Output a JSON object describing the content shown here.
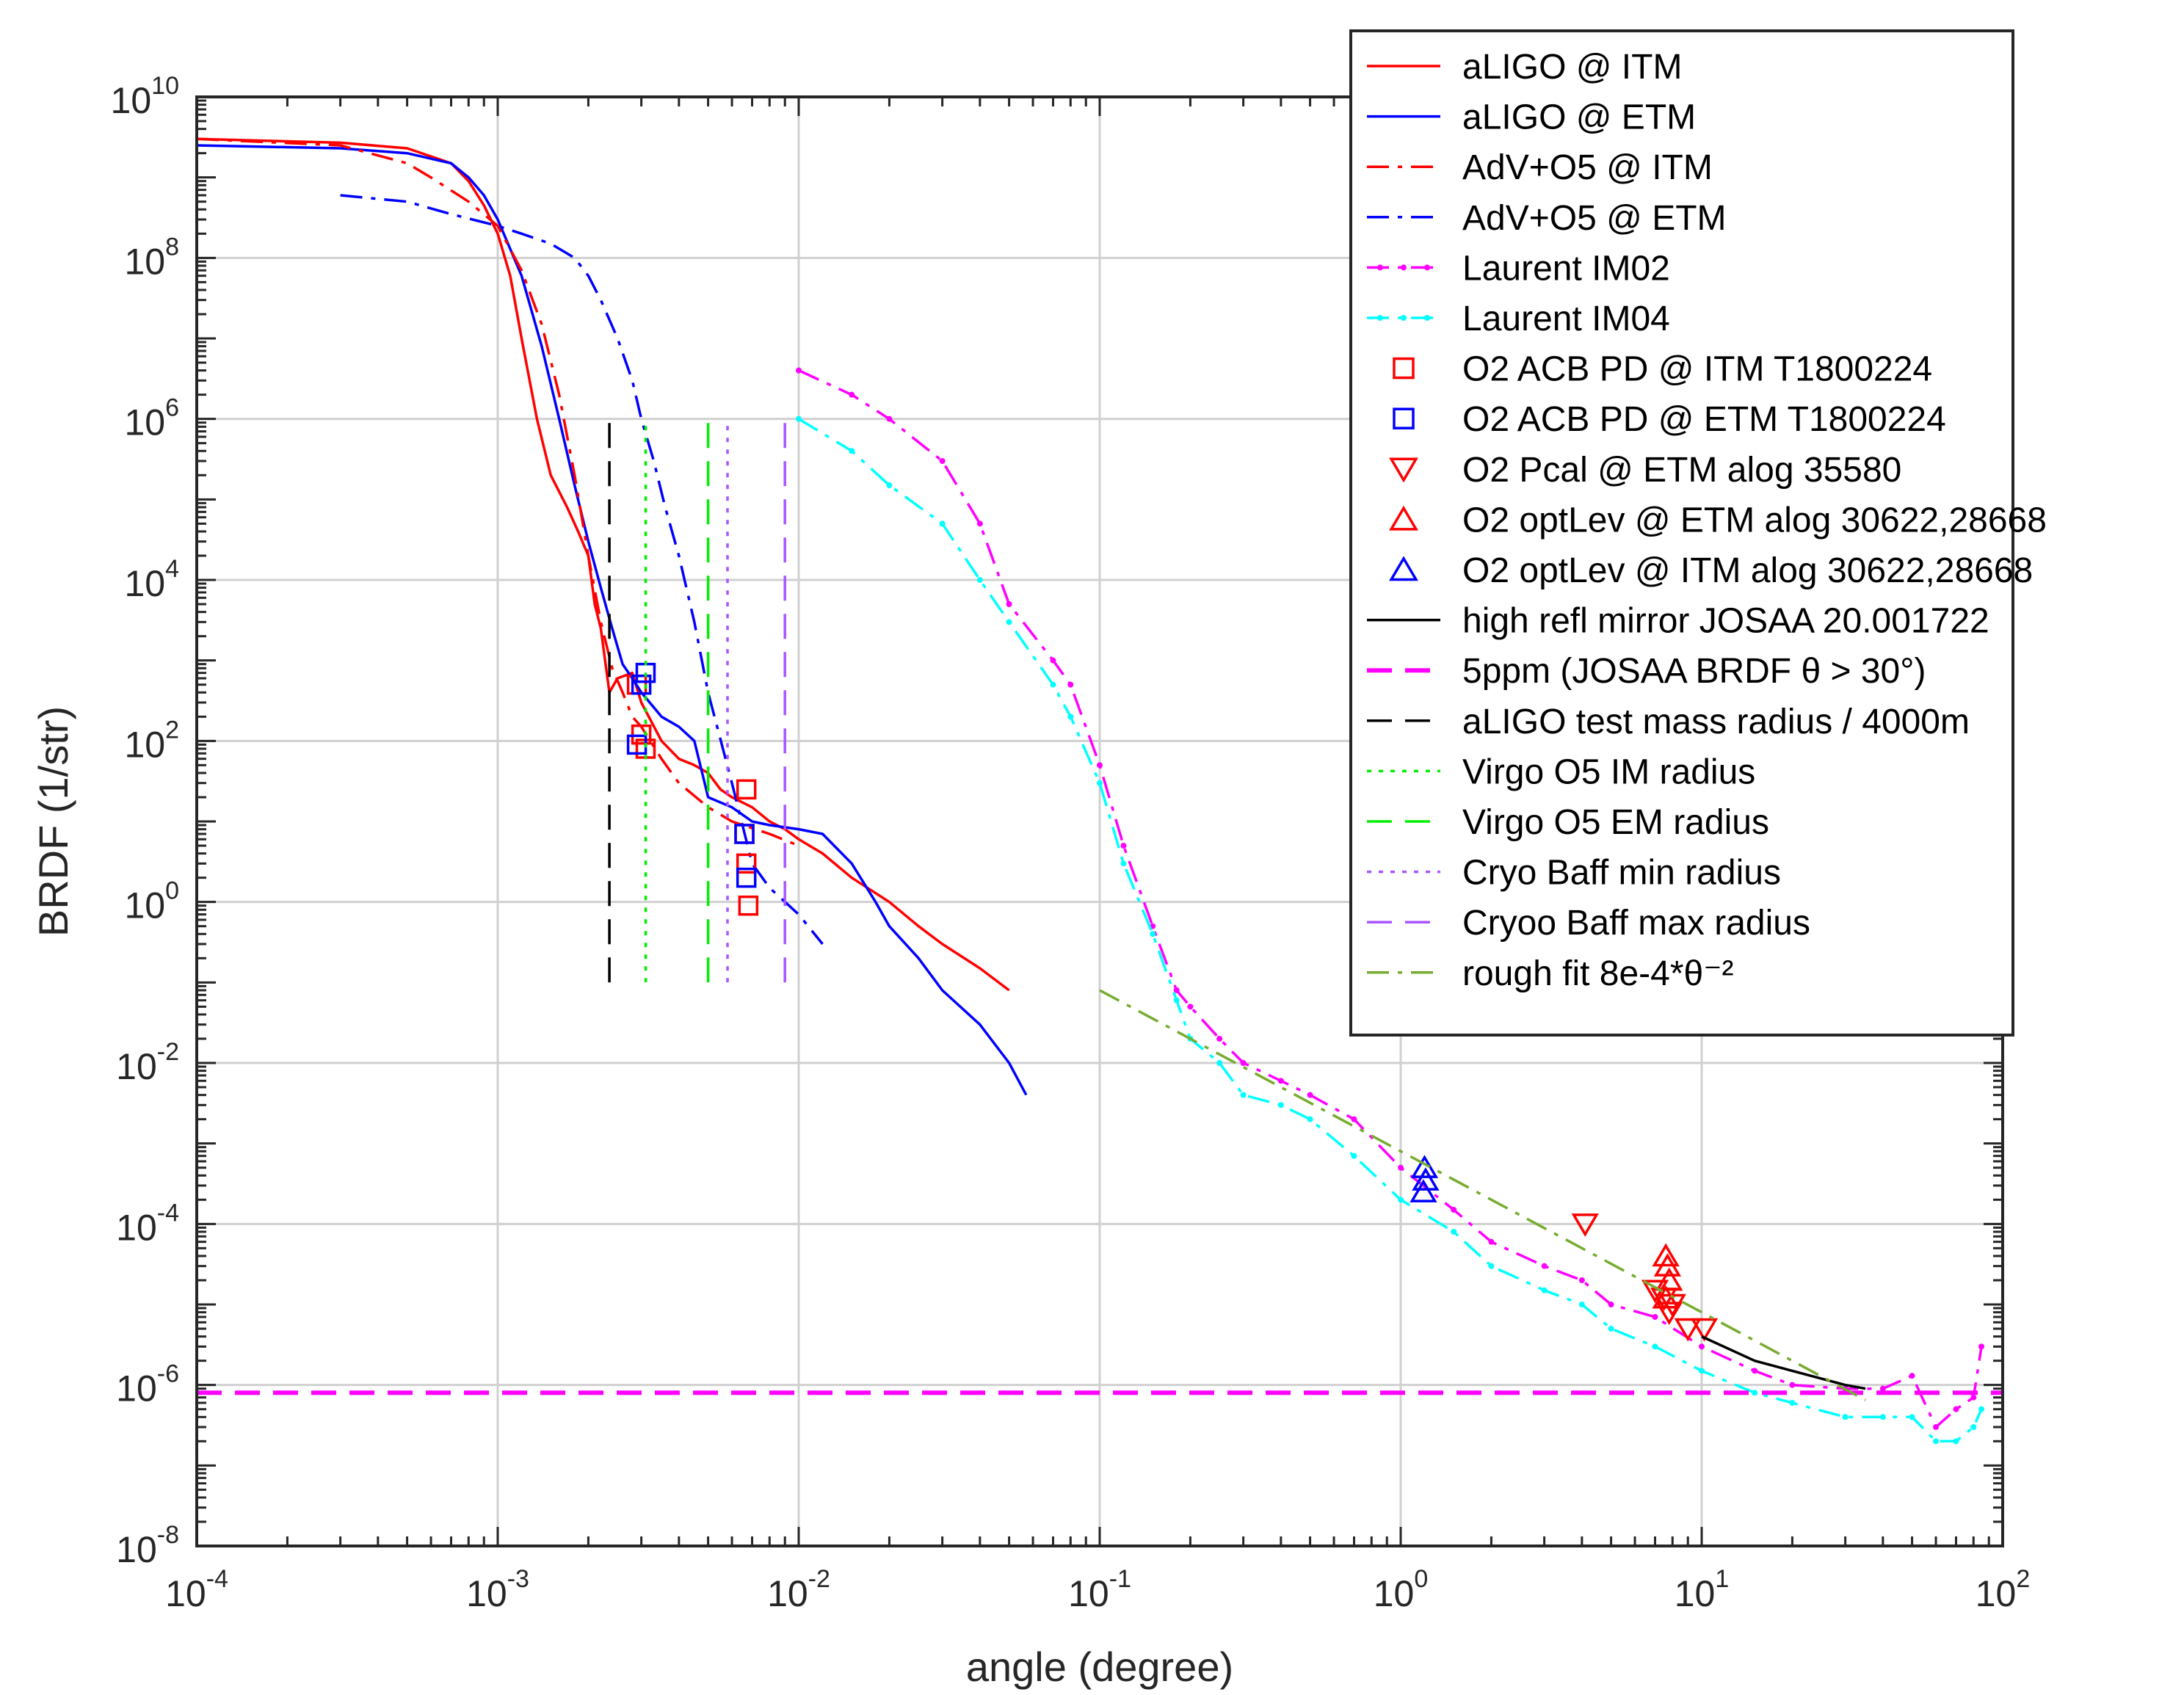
{
  "chart_data": {
    "type": "line",
    "title": "",
    "xlabel": "angle (degree)",
    "ylabel": "BRDF (1/str)",
    "xscale": "log",
    "yscale": "log",
    "xlim": [
      0.0001,
      100
    ],
    "ylim": [
      1e-08,
      10000000000.0
    ],
    "grid": true,
    "legend_position": "top-right",
    "x_tick_labels": [
      {
        "value": 0.0001,
        "base": "10",
        "exp": "-4"
      },
      {
        "value": 0.001,
        "base": "10",
        "exp": "-3"
      },
      {
        "value": 0.01,
        "base": "10",
        "exp": "-2"
      },
      {
        "value": 0.1,
        "base": "10",
        "exp": "-1"
      },
      {
        "value": 1,
        "base": "10",
        "exp": "0"
      },
      {
        "value": 10,
        "base": "10",
        "exp": "1"
      },
      {
        "value": 100,
        "base": "10",
        "exp": "2"
      }
    ],
    "y_tick_labels": [
      {
        "value": 1e-08,
        "base": "10",
        "exp": "-8"
      },
      {
        "value": 1e-06,
        "base": "10",
        "exp": "-6"
      },
      {
        "value": 0.0001,
        "base": "10",
        "exp": "-4"
      },
      {
        "value": 0.01,
        "base": "10",
        "exp": "-2"
      },
      {
        "value": 1,
        "base": "10",
        "exp": "0"
      },
      {
        "value": 100,
        "base": "10",
        "exp": "2"
      },
      {
        "value": 10000,
        "base": "10",
        "exp": "4"
      },
      {
        "value": 1000000,
        "base": "10",
        "exp": "6"
      },
      {
        "value": 100000000,
        "base": "10",
        "exp": "8"
      },
      {
        "value": 10000000000,
        "base": "10",
        "exp": "10"
      }
    ],
    "series": [
      {
        "id": "aligo-itm",
        "name": "aLIGO @ ITM",
        "color": "#ff0000",
        "dash": "solid",
        "marker": "none",
        "x": [
          0.0001,
          0.0003,
          0.0005,
          0.0007,
          0.0008,
          0.0009,
          0.001,
          0.0011,
          0.0012,
          0.00135,
          0.0015,
          0.0017,
          0.00185,
          0.002,
          0.0021,
          0.0022,
          0.00235,
          0.0025,
          0.0028,
          0.003,
          0.0035,
          0.004,
          0.0045,
          0.005,
          0.0055,
          0.006,
          0.007,
          0.008,
          0.009,
          0.01,
          0.012,
          0.015,
          0.02,
          0.025,
          0.03,
          0.04,
          0.05
        ],
        "y": [
          3000000000,
          2700000000,
          2300000000,
          1500000000,
          900000000,
          450000000,
          200000000,
          60000000,
          10000000,
          1000000,
          200000,
          80000,
          40000,
          20000,
          5000,
          2500,
          400,
          600,
          700,
          300,
          100,
          60,
          50,
          40,
          25,
          20,
          15,
          10,
          8,
          6,
          4,
          2,
          1,
          0.5,
          0.3,
          0.15,
          0.08
        ]
      },
      {
        "id": "aligo-etm",
        "name": "aLIGO @ ETM",
        "color": "#0000ff",
        "dash": "solid",
        "marker": "none",
        "x": [
          0.0001,
          0.0003,
          0.0005,
          0.0007,
          0.0008,
          0.0009,
          0.001,
          0.0012,
          0.0014,
          0.0016,
          0.0018,
          0.002,
          0.0022,
          0.0024,
          0.0026,
          0.0028,
          0.003,
          0.0035,
          0.004,
          0.0045,
          0.005,
          0.006,
          0.007,
          0.008,
          0.01,
          0.012,
          0.015,
          0.018,
          0.02,
          0.025,
          0.03,
          0.04,
          0.05,
          0.057
        ],
        "y": [
          2500000000,
          2300000000,
          2000000000,
          1500000000,
          1000000000,
          600000000,
          300000000,
          60000000,
          8000000,
          1000000,
          150000,
          30000,
          8000,
          2500,
          900,
          600,
          400,
          200,
          150,
          100,
          20,
          15,
          10,
          9,
          8,
          7,
          3,
          1,
          0.5,
          0.2,
          0.08,
          0.03,
          0.01,
          0.004
        ]
      },
      {
        "id": "adv-itm",
        "name": "AdV+O5 @ ITM",
        "color": "#ff0000",
        "dash": "dashdot",
        "marker": "none",
        "x": [
          0.0001,
          0.0003,
          0.0005,
          0.0006,
          0.0008,
          0.001,
          0.0012,
          0.0014,
          0.0016,
          0.0018,
          0.002,
          0.0022,
          0.0024,
          0.0026,
          0.0028,
          0.003,
          0.0035,
          0.004,
          0.005,
          0.006,
          0.008,
          0.01
        ],
        "y": [
          3000000000,
          2500000000,
          1500000000,
          1000000000,
          500000000,
          250000000,
          70000000,
          15000000,
          2000000,
          200000,
          20000,
          3000,
          800,
          400,
          200,
          150,
          60,
          30,
          15,
          10,
          7,
          5
        ]
      },
      {
        "id": "adv-etm",
        "name": "AdV+O5 @ ETM",
        "color": "#0000ff",
        "dash": "dashdot",
        "marker": "none",
        "x": [
          0.0003,
          0.0005,
          0.0007,
          0.001,
          0.0012,
          0.0015,
          0.0018,
          0.002,
          0.0022,
          0.0025,
          0.0028,
          0.003,
          0.0033,
          0.0036,
          0.004,
          0.0045,
          0.005,
          0.006,
          0.007,
          0.008,
          0.01,
          0.012
        ],
        "y": [
          600000000,
          500000000,
          350000000,
          250000000,
          200000000,
          150000000,
          100000000,
          60000000,
          30000000,
          10000000,
          3000000,
          1000000,
          300000,
          80000,
          20000,
          3000,
          400,
          30,
          3,
          1.5,
          0.7,
          0.3
        ]
      },
      {
        "id": "laurent-im02",
        "name": "Laurent IM02",
        "color": "#ff00ff",
        "dash": "dashdot",
        "marker": "dot",
        "x": [
          0.01,
          0.015,
          0.02,
          0.03,
          0.04,
          0.05,
          0.07,
          0.08,
          0.1,
          0.12,
          0.15,
          0.18,
          0.2,
          0.25,
          0.3,
          0.4,
          0.5,
          0.7,
          1,
          1.5,
          2,
          3,
          4,
          5,
          7,
          10,
          15,
          20,
          30,
          40,
          50,
          60,
          70,
          80,
          85
        ],
        "y": [
          4000000,
          2000000,
          1000000,
          300000,
          50000,
          5000,
          1000,
          500,
          50,
          5,
          0.5,
          0.08,
          0.05,
          0.02,
          0.01,
          0.006,
          0.004,
          0.002,
          0.0005,
          0.00015,
          6e-05,
          3e-05,
          2e-05,
          1e-05,
          7e-06,
          3e-06,
          1.5e-06,
          1e-06,
          9e-07,
          9e-07,
          1.3e-06,
          3e-07,
          5e-07,
          7e-07,
          3e-06
        ]
      },
      {
        "id": "laurent-im04",
        "name": "Laurent IM04",
        "color": "#00ffff",
        "dash": "dashdot",
        "marker": "dot",
        "x": [
          0.01,
          0.015,
          0.02,
          0.03,
          0.04,
          0.05,
          0.07,
          0.08,
          0.1,
          0.12,
          0.15,
          0.18,
          0.2,
          0.25,
          0.3,
          0.4,
          0.5,
          0.7,
          1,
          1.5,
          2,
          3,
          4,
          5,
          7,
          10,
          15,
          20,
          30,
          40,
          50,
          60,
          70,
          80,
          85
        ],
        "y": [
          1000000,
          400000,
          150000,
          50000,
          10000,
          3000,
          500,
          200,
          30,
          3,
          0.4,
          0.06,
          0.02,
          0.01,
          0.004,
          0.003,
          0.002,
          0.0007,
          0.0002,
          8e-05,
          3e-05,
          1.5e-05,
          1e-05,
          5e-06,
          3e-06,
          1.5e-06,
          8e-07,
          6e-07,
          4e-07,
          4e-07,
          4e-07,
          2e-07,
          2e-07,
          3e-07,
          5e-07
        ]
      },
      {
        "id": "o2-acb-itm",
        "name": "O2 ACB PD @ ITM T1800224",
        "color": "#ff0000",
        "dash": "none",
        "marker": "square",
        "x": [
          0.0029,
          0.0031,
          0.003,
          0.0067,
          0.0066,
          0.0067,
          0.0068
        ],
        "y": [
          500,
          80,
          120,
          25,
          7,
          3,
          0.9
        ]
      },
      {
        "id": "o2-acb-etm",
        "name": "O2 ACB PD @ ETM T1800224",
        "color": "#0000ff",
        "dash": "none",
        "marker": "square",
        "x": [
          0.003,
          0.0031,
          0.0029,
          0.0066,
          0.0067
        ],
        "y": [
          500,
          700,
          90,
          7,
          2
        ]
      },
      {
        "id": "o2-pcal-etm",
        "name": "O2 Pcal @ ETM alog 35580",
        "color": "#ff0000",
        "dash": "none",
        "marker": "triangle-down",
        "x": [
          4.1,
          7,
          7.5,
          8,
          7.8,
          9,
          10.2
        ],
        "y": [
          0.0001,
          1.5e-05,
          1.2e-05,
          1e-05,
          8e-06,
          5e-06,
          5e-06
        ]
      },
      {
        "id": "o2-optlev-etm",
        "name": "O2 optLev @ ETM alog 30622,28668",
        "color": "#ff0000",
        "dash": "none",
        "marker": "triangle-up",
        "x": [
          7.6,
          7.7,
          7.8,
          7.6
        ],
        "y": [
          4e-05,
          3e-05,
          2e-05,
          1.2e-05
        ]
      },
      {
        "id": "o2-optlev-itm",
        "name": "O2 optLev @ ITM alog 30622,28668",
        "color": "#0000ff",
        "dash": "none",
        "marker": "triangle-up",
        "x": [
          1.2,
          1.21,
          1.19
        ],
        "y": [
          0.0005,
          0.00035,
          0.00025
        ]
      },
      {
        "id": "high-refl",
        "name": "high refl mirror JOSAA 20.001722",
        "color": "#000000",
        "dash": "solid",
        "marker": "none",
        "x": [
          10,
          15,
          20,
          30,
          35
        ],
        "y": [
          4e-06,
          2e-06,
          1.5e-06,
          1e-06,
          9e-07
        ]
      },
      {
        "id": "5ppm",
        "name": "5ppm (JOSAA BRDF θ > 30°)",
        "color": "#ff00ff",
        "dash": "dashed",
        "marker": "none",
        "x": [
          0.0001,
          100
        ],
        "y": [
          8e-07,
          8e-07
        ]
      },
      {
        "id": "aligo-radius",
        "name": "aLIGO test mass radius / 4000m",
        "color": "#000000",
        "dash": "dashed",
        "marker": "none",
        "x": [
          0.00235,
          0.00235
        ],
        "y": [
          0.1,
          1000000
        ]
      },
      {
        "id": "virgo-im",
        "name": "Virgo O5 IM radius",
        "color": "#00ee00",
        "dash": "dotted",
        "marker": "none",
        "x": [
          0.0031,
          0.0031
        ],
        "y": [
          0.1,
          1000000
        ]
      },
      {
        "id": "virgo-em",
        "name": "Virgo O5 EM radius",
        "color": "#00ee00",
        "dash": "dashed",
        "marker": "none",
        "x": [
          0.005,
          0.005
        ],
        "y": [
          0.1,
          1000000
        ]
      },
      {
        "id": "cryo-min",
        "name": "Cryo Baff min radius",
        "color": "#aa55ff",
        "dash": "dotted",
        "marker": "none",
        "x": [
          0.0058,
          0.0058
        ],
        "y": [
          0.1,
          1000000
        ]
      },
      {
        "id": "cryo-max",
        "name": "Cryoo Baff max radius",
        "color": "#aa55ff",
        "dash": "dashed",
        "marker": "none",
        "x": [
          0.009,
          0.009
        ],
        "y": [
          0.1,
          1000000
        ]
      },
      {
        "id": "rough-fit",
        "name": "rough fit  8e-4*θ⁻²",
        "color": "#77ac30",
        "dash": "dashdot",
        "marker": "none",
        "x": [
          0.1,
          0.2,
          0.5,
          1,
          2,
          5,
          10,
          20,
          35
        ],
        "y": [
          0.08,
          0.02,
          0.0032,
          0.0008,
          0.0002,
          3.2e-05,
          8e-06,
          2e-06,
          6.5e-07
        ]
      }
    ]
  }
}
